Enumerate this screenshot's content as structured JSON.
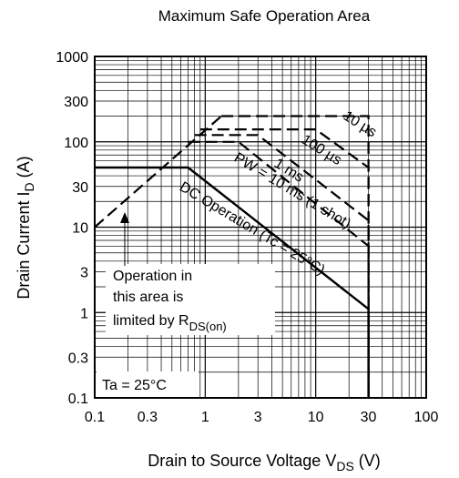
{
  "chart_data": {
    "type": "line",
    "title": "Maximum Safe Operation Area",
    "xlabel": {
      "main": "Drain to Source Voltage  V",
      "sub": "DS",
      "unit": "  (V)"
    },
    "ylabel": {
      "main": "Drain Current  I",
      "sub": "D",
      "unit": "  (A)"
    },
    "x_scale": "log",
    "y_scale": "log",
    "xlim": [
      0.1,
      100
    ],
    "ylim": [
      0.1,
      1000
    ],
    "grid": true,
    "x_ticks": [
      {
        "value": 0.1,
        "label": "0.1"
      },
      {
        "value": 0.3,
        "label": "0.3"
      },
      {
        "value": 1,
        "label": "1"
      },
      {
        "value": 3,
        "label": "3"
      },
      {
        "value": 10,
        "label": "10"
      },
      {
        "value": 30,
        "label": "30"
      },
      {
        "value": 100,
        "label": "100"
      }
    ],
    "y_ticks": [
      {
        "value": 0.1,
        "label": "0.1"
      },
      {
        "value": 0.3,
        "label": "0.3"
      },
      {
        "value": 1,
        "label": "1"
      },
      {
        "value": 3,
        "label": "3"
      },
      {
        "value": 10,
        "label": "10"
      },
      {
        "value": 30,
        "label": "30"
      },
      {
        "value": 100,
        "label": "100"
      },
      {
        "value": 300,
        "label": "300"
      },
      {
        "value": 1000,
        "label": "1000"
      }
    ],
    "series": [
      {
        "name": "10 µs",
        "style": "dashed",
        "points": [
          [
            1.4,
            200
          ],
          [
            30,
            200
          ],
          [
            30,
            0.1
          ]
        ]
      },
      {
        "name": "100 µs",
        "style": "dashed",
        "points": [
          [
            0.9,
            140
          ],
          [
            10,
            140
          ],
          [
            30,
            50
          ],
          [
            30,
            0.1
          ]
        ]
      },
      {
        "name": "1 ms",
        "style": "dashed",
        "points": [
          [
            0.8,
            120
          ],
          [
            3,
            120
          ],
          [
            30,
            12
          ],
          [
            30,
            0.1
          ]
        ]
      },
      {
        "name": "PW = 10 ms (1 shot)",
        "style": "dashed",
        "points": [
          [
            0.7,
            100
          ],
          [
            2,
            100
          ],
          [
            30,
            6
          ],
          [
            30,
            0.1
          ]
        ]
      },
      {
        "name": "DC Operation (Tc = 25°C)",
        "style": "solid",
        "points": [
          [
            0.1,
            50
          ],
          [
            0.7,
            50
          ],
          [
            30,
            1.1
          ],
          [
            30,
            0.1
          ]
        ]
      },
      {
        "name": "R_DS(on) limit",
        "style": "dashed",
        "points": [
          [
            0.1,
            10
          ],
          [
            1.4,
            200
          ]
        ]
      }
    ],
    "annotations": {
      "rds_line1": "Operation in",
      "rds_line2": "this area is",
      "rds_line3": "limited by R",
      "rds_sub": "DS(on)",
      "ta": "Ta = 25°C"
    },
    "curve_labels": {
      "l10us": "10 µs",
      "l100us": "100 µs",
      "l1ms": "1 ms",
      "l10ms": "PW = 10 ms (1 shot)",
      "ldc": "DC Operation (Tc = 25°C)"
    }
  }
}
